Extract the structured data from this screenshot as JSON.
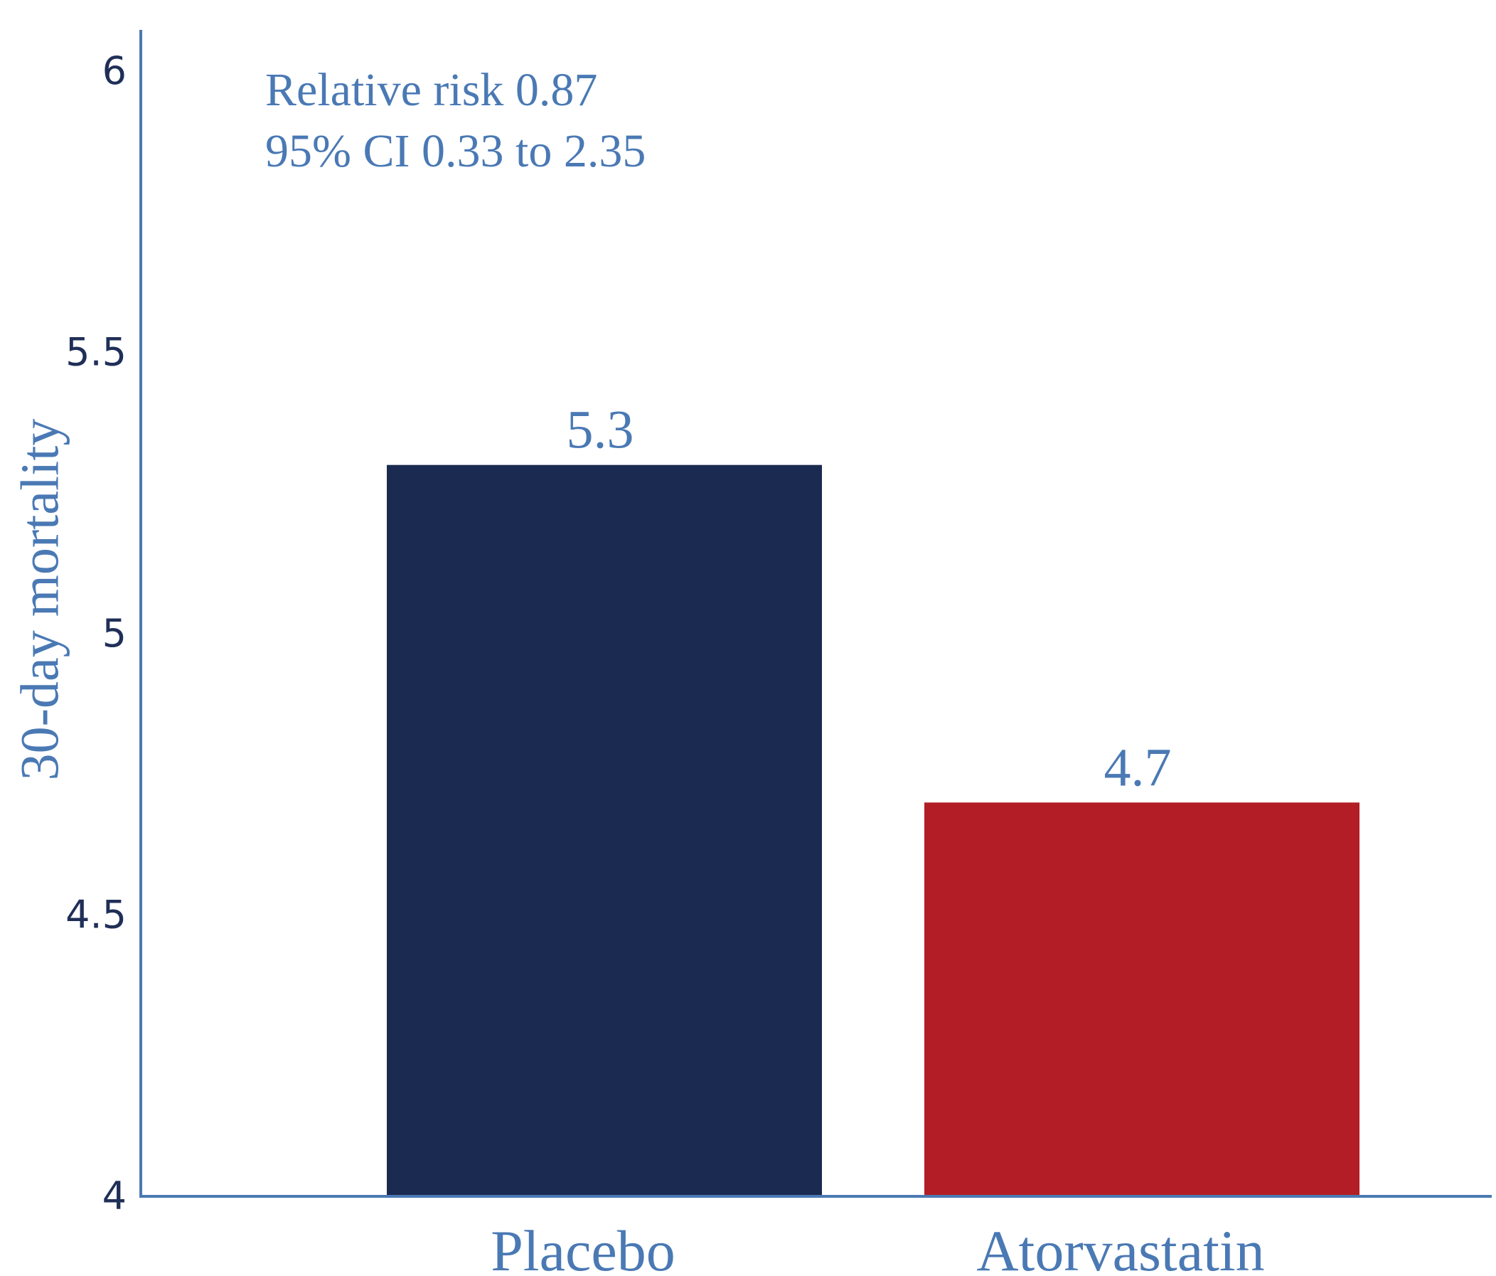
{
  "colors": {
    "axis": "#4a79b4",
    "text": "#4a79b4",
    "tick": "#1f2f57"
  },
  "chart_data": {
    "type": "bar",
    "categories": [
      "Placebo",
      "Atorvastatin"
    ],
    "values": [
      5.3,
      4.7
    ],
    "value_labels": [
      "5.3",
      "4.7"
    ],
    "bar_colors": [
      "#1b2a50",
      "#b31d25"
    ],
    "title": "",
    "xlabel": "",
    "ylabel": "30-day mortality",
    "ylim": [
      4,
      6
    ],
    "yticks": [
      4,
      4.5,
      5,
      5.5,
      6
    ],
    "ytick_labels": [
      "4",
      "4.5",
      "5",
      "5.5",
      "6"
    ],
    "grid": false,
    "legend": "none",
    "annotations": [
      "Relative risk 0.87",
      "95% CI 0.33 to 2.35"
    ]
  }
}
